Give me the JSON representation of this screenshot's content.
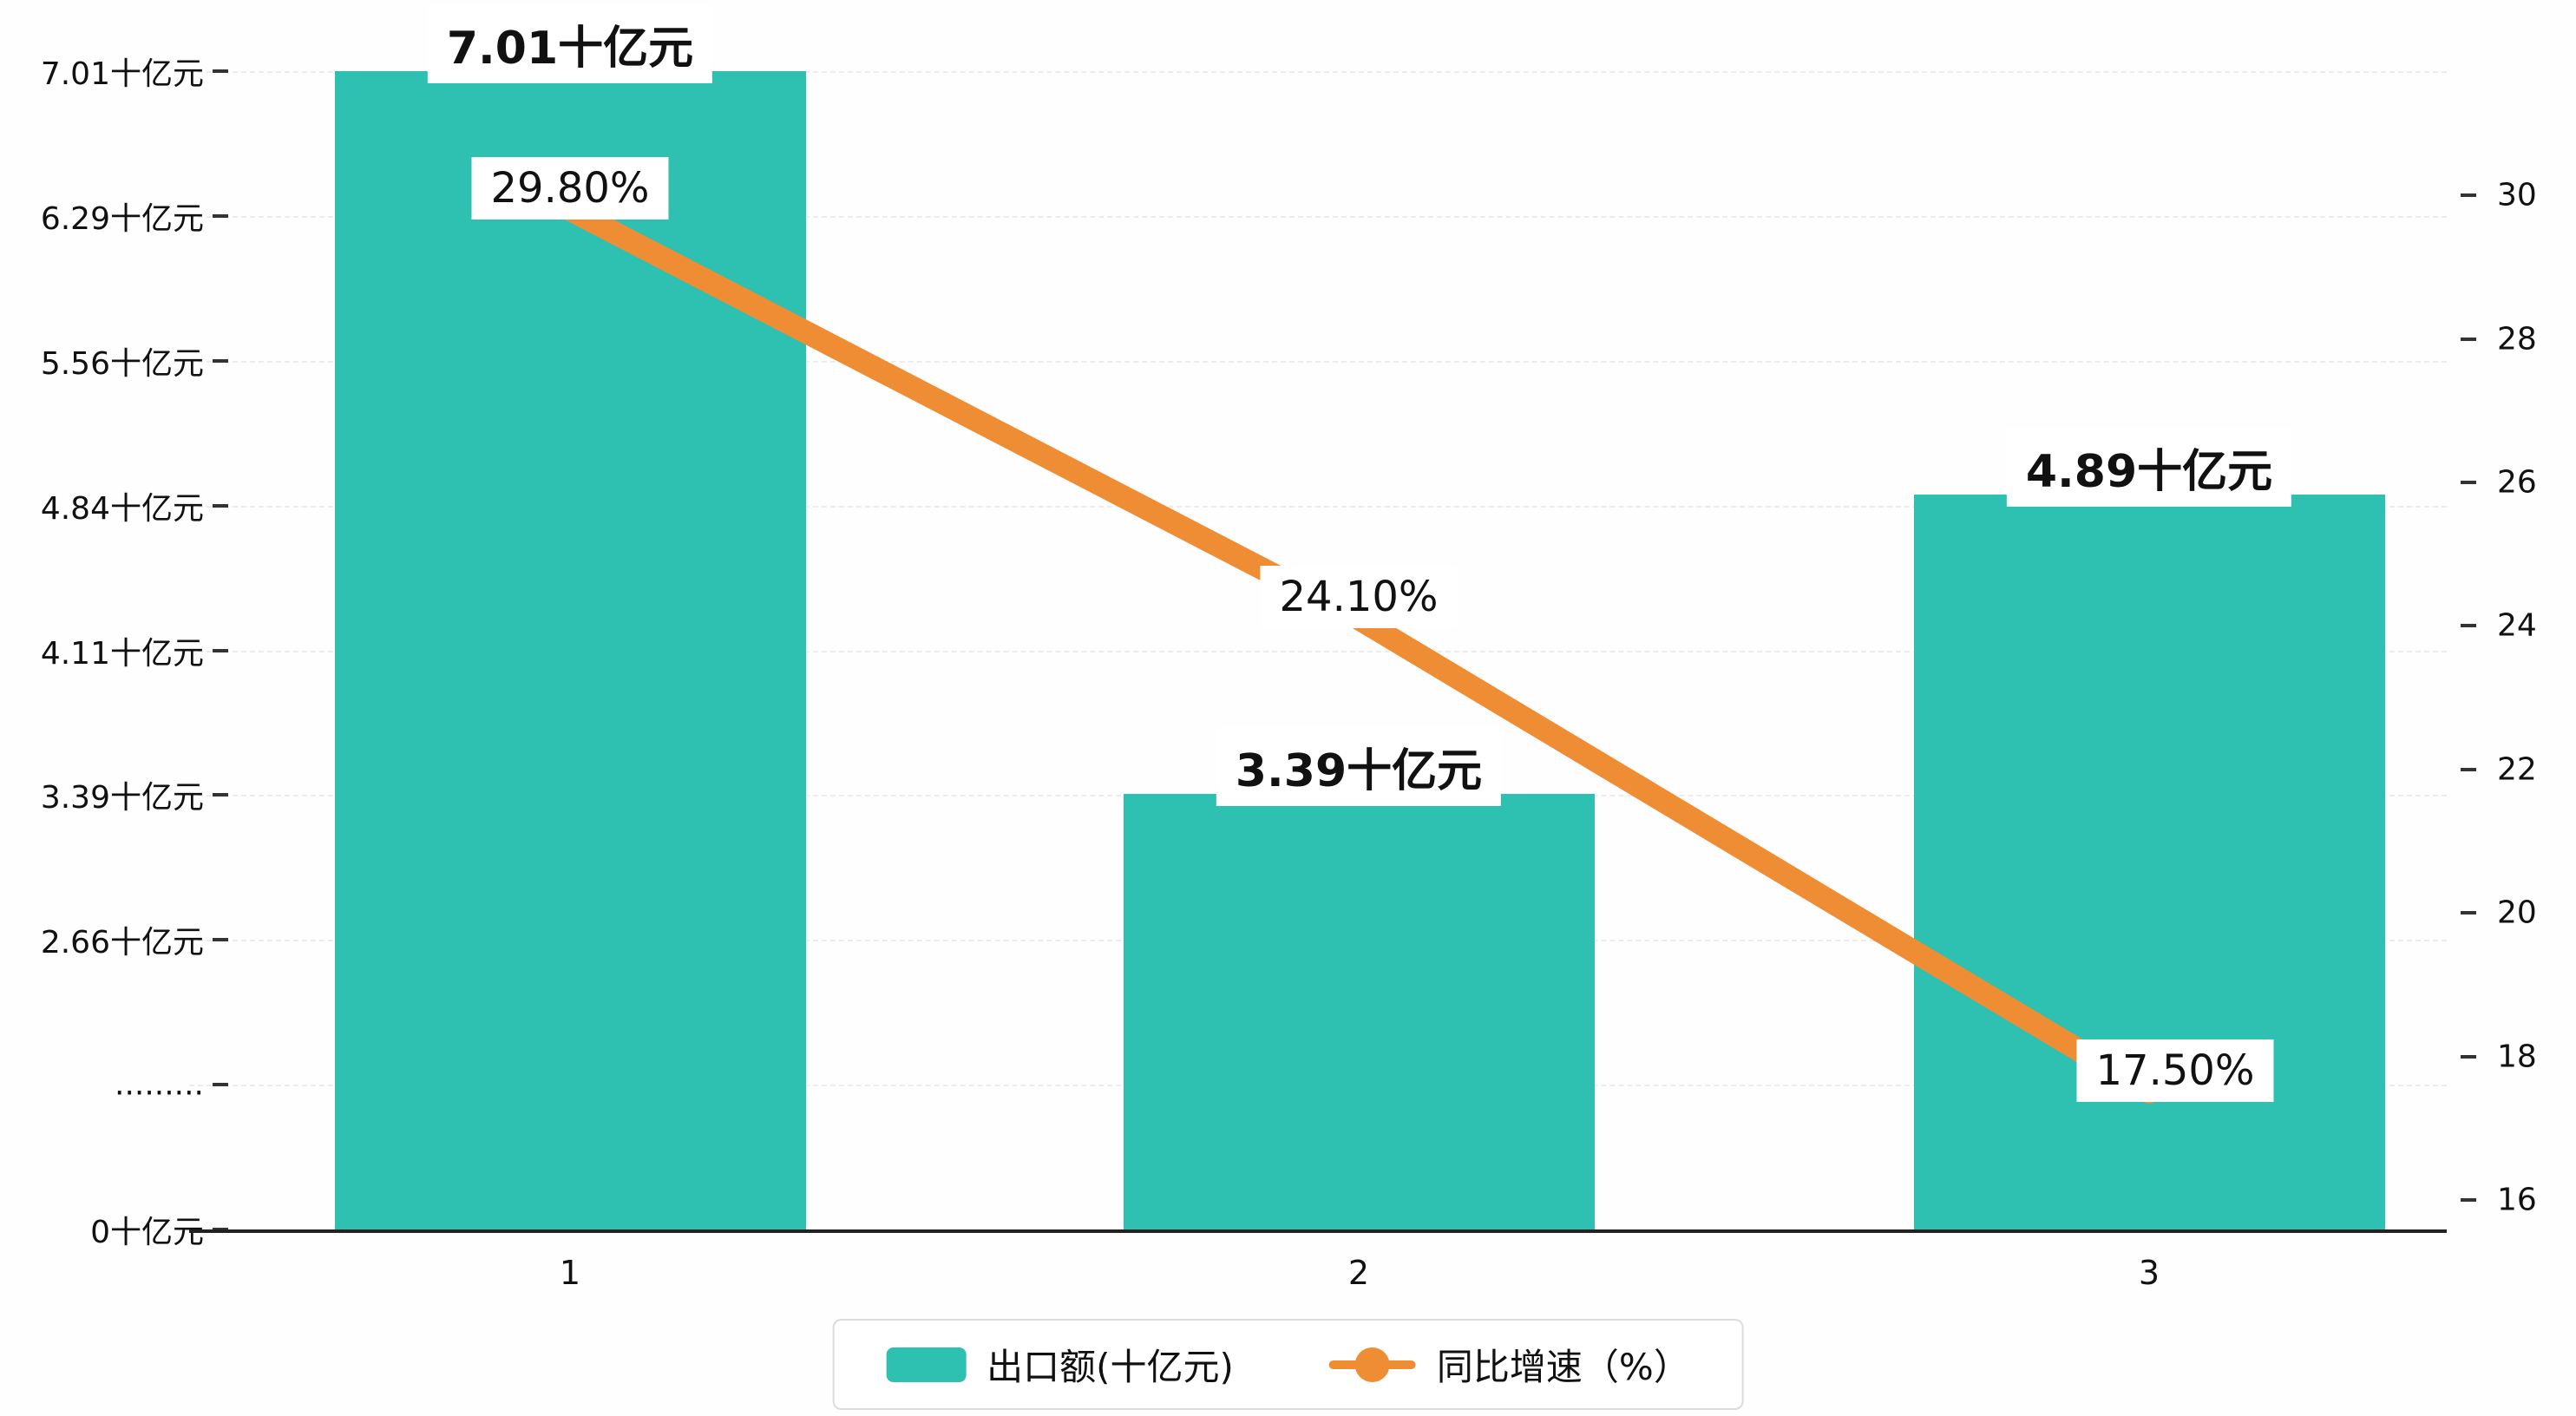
{
  "chart_data": {
    "type": "bar",
    "categories": [
      "1",
      "2",
      "3"
    ],
    "series": [
      {
        "name": "出口额(十亿元)",
        "type": "bar",
        "values": [
          7.01,
          3.39,
          4.89
        ],
        "labels": [
          "7.01十亿元",
          "3.39十亿元",
          "4.89十亿元"
        ],
        "color": "#2EC0B1"
      },
      {
        "name": "同比增速（%）",
        "type": "line",
        "values": [
          29.8,
          24.1,
          17.5
        ],
        "labels": [
          "29.80%",
          "24.10%",
          "17.50%"
        ],
        "color": "#EF8D35"
      }
    ],
    "left_axis": {
      "unit": "十亿元",
      "ticks": [
        "0十亿元",
        ".........",
        "2.66十亿元",
        "3.39十亿元",
        "4.11十亿元",
        "4.84十亿元",
        "5.56十亿元",
        "6.29十亿元",
        "7.01十亿元"
      ],
      "broken_axis": true,
      "tick_step_value": 0.725,
      "first_real_tick_value": 2.66
    },
    "right_axis": {
      "ticks": [
        "16",
        "18",
        "20",
        "22",
        "24",
        "26",
        "28",
        "30"
      ],
      "min": 16,
      "max": 30,
      "step": 2
    },
    "legend": [
      {
        "label": "出口额(十亿元)",
        "color": "#2EC0B1",
        "marker": "rect"
      },
      {
        "label": "同比增速（%）",
        "color": "#EF8D35",
        "marker": "line-dot"
      }
    ],
    "title": "",
    "grid": true,
    "legend_position": "bottom-center"
  }
}
